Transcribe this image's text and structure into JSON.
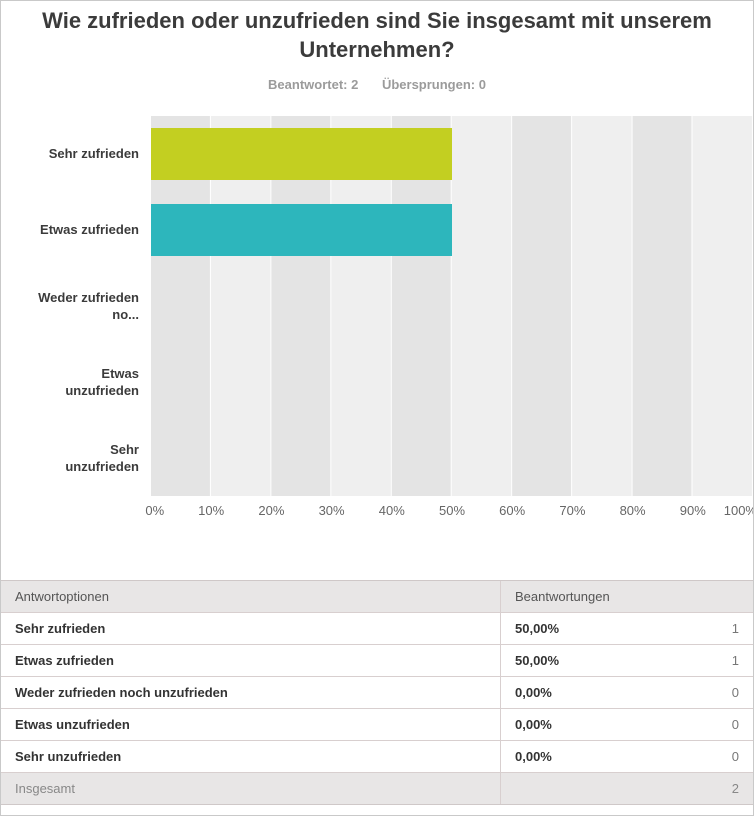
{
  "header": {
    "title": "Wie zufrieden oder unzufrieden sind Sie insgesamt mit unserem Unternehmen?",
    "answered": "Beantwortet: 2",
    "skipped": "Übersprungen: 0"
  },
  "chart_data": {
    "type": "bar",
    "orientation": "horizontal",
    "categories": [
      "Sehr zufrieden",
      "Etwas zufrieden",
      "Weder zufrieden no...",
      "Etwas unzufrieden",
      "Sehr unzufrieden"
    ],
    "values": [
      50,
      50,
      0,
      0,
      0
    ],
    "value_labels": [
      "50,00%",
      "50,00%",
      "0,00%",
      "0,00%",
      "0,00%"
    ],
    "bar_colors": [
      "#c3cf21",
      "#2db6bc",
      "#cccccc",
      "#cccccc",
      "#cccccc"
    ],
    "xlim": [
      0,
      100
    ],
    "x_tick_labels": [
      "0%",
      "10%",
      "20%",
      "30%",
      "40%",
      "50%",
      "60%",
      "70%",
      "80%",
      "90%",
      "100%"
    ],
    "grid": true,
    "legend_position": "none"
  },
  "table": {
    "headers": [
      "Antwortoptionen",
      "Beantwortungen"
    ],
    "rows": [
      {
        "option": "Sehr zufrieden",
        "percent": "50,00%",
        "count": "1"
      },
      {
        "option": "Etwas zufrieden",
        "percent": "50,00%",
        "count": "1"
      },
      {
        "option": "Weder zufrieden noch unzufrieden",
        "percent": "0,00%",
        "count": "0"
      },
      {
        "option": "Etwas unzufrieden",
        "percent": "0,00%",
        "count": "0"
      },
      {
        "option": "Sehr unzufrieden",
        "percent": "0,00%",
        "count": "0"
      }
    ],
    "footer": {
      "label": "Insgesamt",
      "total": "2"
    }
  }
}
